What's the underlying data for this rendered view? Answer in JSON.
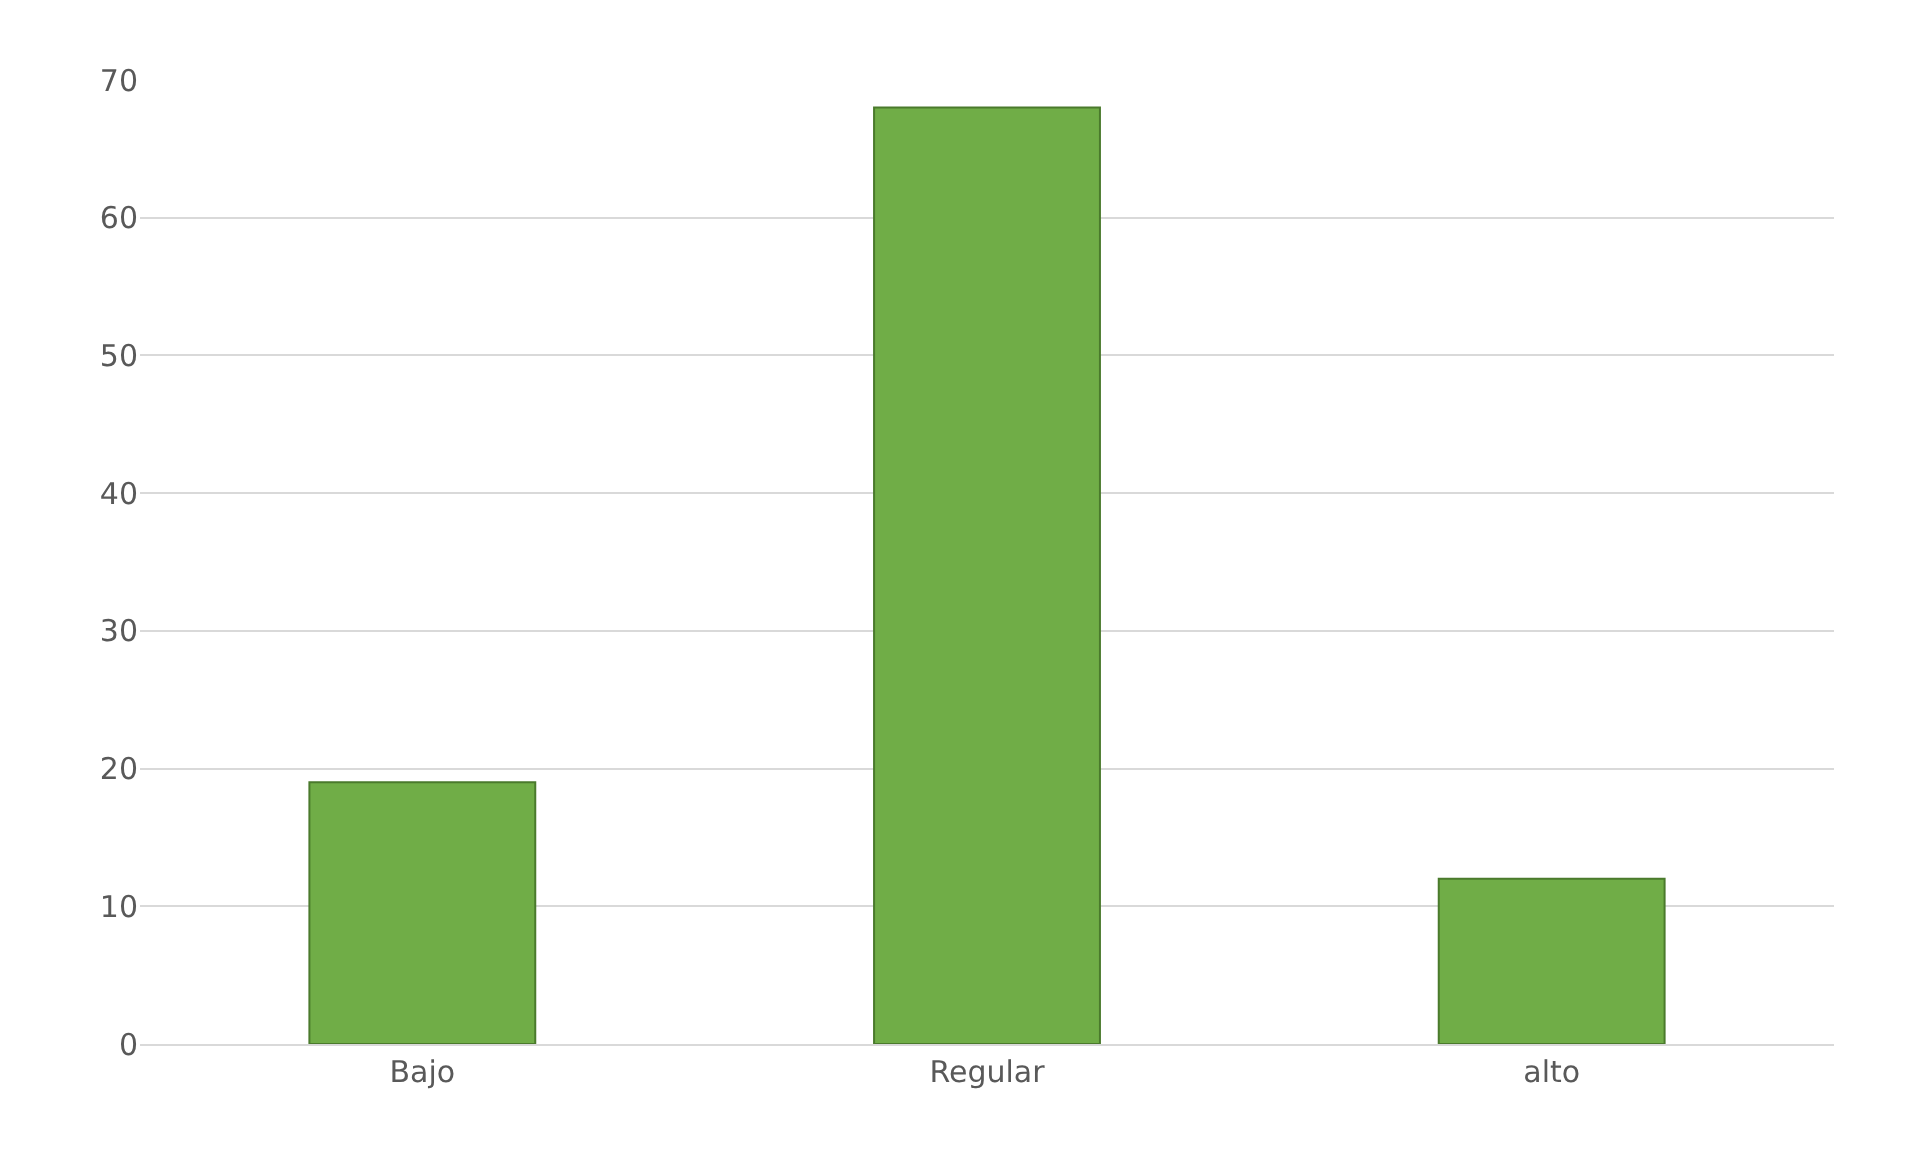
{
  "chart_data": {
    "type": "bar",
    "categories": [
      "Bajo",
      "Regular",
      "alto"
    ],
    "values": [
      19,
      68,
      12
    ],
    "color": "#70ad47",
    "ylim": [
      0,
      70
    ],
    "yticks": [
      0,
      10,
      20,
      30,
      40,
      50,
      60,
      70
    ],
    "grid": "y",
    "legend": false
  }
}
